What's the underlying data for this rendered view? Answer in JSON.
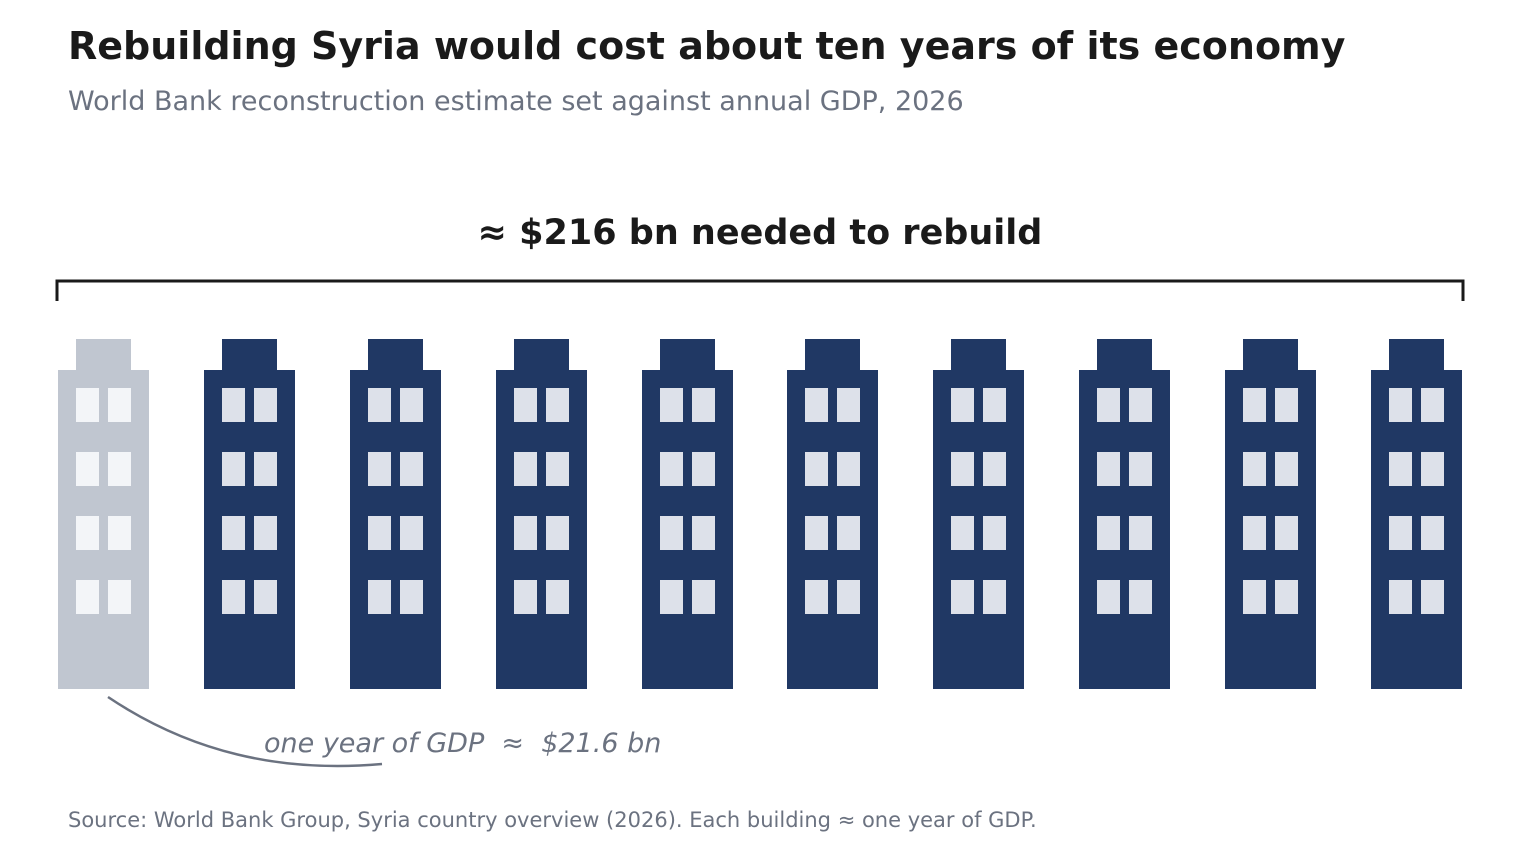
{
  "header": {
    "title": "Rebuilding Syria would cost about ten years of its economy",
    "subtitle": "World Bank reconstruction estimate set against annual GDP, 2026"
  },
  "footer": {
    "source": "Source: World Bank Group, Syria country overview (2026). Each building ≈ one year of GDP."
  },
  "chart_data": {
    "type": "pictogram",
    "bracket_label": "≈ $216 bn needed to rebuild",
    "total_value": 216,
    "unit_value": 21.6,
    "unit_label": "one year of GDP  ≈  $21.6 bn",
    "units": 10,
    "highlighted_index": 0,
    "colors": {
      "highlight": "#c0c6d0",
      "highlight_window": "#f3f5f8",
      "unit": "#203864",
      "unit_window": "#dde1ea",
      "bracket": "#1a1a1a",
      "annotation": "#6b7280"
    },
    "icon": "building-icon"
  }
}
